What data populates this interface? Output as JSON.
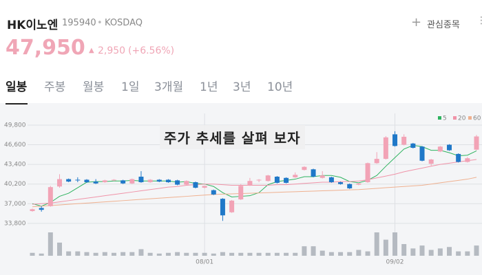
{
  "header": {
    "name": "HK이노엔",
    "code": "195940",
    "market": "KOSDAQ",
    "watch_button": "관심종목",
    "price": "47,950",
    "change": "2,950",
    "change_pct": "(+6.56%)"
  },
  "tabs": [
    "일봉",
    "주봉",
    "월봉",
    "1일",
    "3개월",
    "1년",
    "3년",
    "10년"
  ],
  "overlay_text": "주가 추세를 살펴 보자",
  "chart_data": {
    "type": "candlestick",
    "categories": [
      null,
      null,
      null,
      null,
      null,
      null,
      null,
      null,
      null,
      null,
      null,
      null,
      null,
      null,
      null,
      null,
      null,
      null,
      null,
      "08/01",
      null,
      null,
      null,
      null,
      null,
      null,
      null,
      null,
      null,
      null,
      null,
      null,
      null,
      null,
      null,
      null,
      null,
      null,
      null,
      null,
      "09/02",
      null,
      null,
      null,
      null,
      null,
      null,
      null,
      null,
      null
    ],
    "open": [
      35800,
      36300,
      36600,
      39800,
      41000,
      40900,
      40900,
      40600,
      40500,
      40800,
      40800,
      40300,
      41400,
      40500,
      40900,
      40900,
      40800,
      40100,
      40500,
      39600,
      39200,
      37800,
      35600,
      37700,
      40000,
      40900,
      40700,
      41400,
      41200,
      41300,
      42500,
      42600,
      41200,
      41300,
      40500,
      40200,
      40100,
      40500,
      43600,
      44300,
      48300,
      46600,
      46800,
      46300,
      43500,
      45500,
      46600,
      45100,
      43800,
      45800
    ],
    "high": [
      36200,
      36600,
      39900,
      41800,
      41100,
      41300,
      41000,
      41000,
      40900,
      41000,
      40900,
      41100,
      42300,
      41000,
      41000,
      41000,
      40900,
      40800,
      40600,
      39900,
      39300,
      37900,
      37600,
      40200,
      41200,
      41000,
      41700,
      41500,
      41300,
      42100,
      43100,
      42700,
      42300,
      41400,
      40600,
      40300,
      40400,
      43700,
      45400,
      48000,
      48800,
      48300,
      46900,
      46400,
      44300,
      46400,
      46700,
      45200,
      44600,
      48200
    ],
    "low": [
      35700,
      35700,
      36500,
      39600,
      40500,
      40500,
      40400,
      40200,
      40400,
      40700,
      40200,
      40200,
      40400,
      40400,
      40500,
      40400,
      40000,
      40000,
      39500,
      39500,
      38400,
      34200,
      35500,
      37600,
      39900,
      40500,
      40600,
      40300,
      40300,
      41200,
      42400,
      41300,
      41100,
      40400,
      40100,
      39400,
      40000,
      40400,
      43500,
      44200,
      46300,
      46500,
      46000,
      43900,
      43200,
      45400,
      45600,
      43700,
      43700,
      45700
    ],
    "close": [
      36100,
      36000,
      39700,
      41000,
      40600,
      40800,
      40500,
      40300,
      40800,
      40900,
      40300,
      41000,
      40500,
      40900,
      40600,
      40500,
      40100,
      40700,
      39600,
      39900,
      38500,
      35100,
      37500,
      39900,
      40700,
      40900,
      41600,
      40400,
      40400,
      41700,
      43000,
      41400,
      41600,
      40500,
      40200,
      39500,
      40300,
      43600,
      44300,
      47800,
      46400,
      47900,
      46100,
      44000,
      44200,
      46300,
      45700,
      43800,
      44400,
      47950
    ],
    "up_color": "#f2a3b6",
    "down_color": "#1f78c8",
    "volume": {
      "color": "#b5bac1",
      "values": [
        4,
        3,
        32,
        18,
        6,
        6,
        5,
        4,
        5,
        4,
        5,
        5,
        9,
        4,
        3,
        4,
        5,
        4,
        4,
        4,
        3,
        5,
        4,
        4,
        4,
        4,
        4,
        4,
        4,
        4,
        13,
        13,
        7,
        5,
        5,
        5,
        8,
        6,
        32,
        22,
        32,
        16,
        10,
        14,
        8,
        10,
        12,
        6,
        6,
        14
      ]
    },
    "moving_averages": [
      {
        "name": "5",
        "color": "#2db35f",
        "values": [
          37000,
          36600,
          37200,
          38200,
          38700,
          39600,
          40500,
          40600,
          40600,
          40700,
          40700,
          40800,
          40700,
          40700,
          40700,
          40700,
          40500,
          40600,
          40300,
          40200,
          39800,
          38800,
          38100,
          38200,
          38300,
          38800,
          40100,
          40600,
          40800,
          41000,
          41400,
          41400,
          41600,
          41600,
          41300,
          40600,
          40400,
          40800,
          41600,
          43100,
          44500,
          45900,
          46500,
          46300,
          45700,
          45700,
          45300,
          44800,
          44900,
          45600
        ]
      },
      {
        "name": "20",
        "color": "#f093a8",
        "values": [
          36900,
          37000,
          37100,
          37300,
          37500,
          37700,
          37900,
          38100,
          38300,
          38500,
          38700,
          38900,
          39100,
          39300,
          39500,
          39700,
          39800,
          40000,
          40100,
          40200,
          40200,
          40100,
          40000,
          40000,
          40000,
          40000,
          40000,
          40100,
          40100,
          40200,
          40300,
          40400,
          40500,
          40500,
          40600,
          40600,
          40700,
          40900,
          41200,
          41500,
          41800,
          42200,
          42500,
          42800,
          43100,
          43400,
          43600,
          43800,
          44000,
          44200
        ]
      },
      {
        "name": "60",
        "color": "#efb08f",
        "values": [
          36500,
          36600,
          36700,
          36800,
          36900,
          37000,
          37100,
          37200,
          37300,
          37400,
          37500,
          37600,
          37700,
          37800,
          37900,
          38000,
          38100,
          38200,
          38300,
          38400,
          38500,
          38550,
          38600,
          38650,
          38700,
          38750,
          38800,
          38850,
          38900,
          38950,
          39000,
          39050,
          39100,
          39150,
          39200,
          39250,
          39300,
          39400,
          39500,
          39600,
          39700,
          39800,
          39900,
          40000,
          40200,
          40400,
          40600,
          40800,
          41000,
          41300
        ]
      }
    ],
    "ylim": [
      33000,
      51700
    ],
    "yticks": [
      {
        "value": 49800,
        "label": "49,800"
      },
      {
        "value": 46600,
        "label": "46,600"
      },
      {
        "value": 43400,
        "label": "43,400"
      },
      {
        "value": 40200,
        "label": "40,200"
      },
      {
        "value": 37000,
        "label": "37,000"
      },
      {
        "value": 33800,
        "label": "33,800"
      }
    ],
    "grid": true
  }
}
